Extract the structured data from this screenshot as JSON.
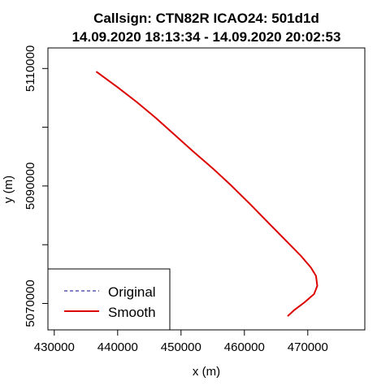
{
  "chart_data": {
    "type": "line",
    "title_line1": "Callsign: CTN82R    ICAO24: 501d1d",
    "title_line2": "14.09.2020 18:13:34 - 14.09.2020 20:02:53",
    "xlabel": "x (m)",
    "ylabel": "y (m)",
    "xlim": [
      429000,
      479000
    ],
    "ylim": [
      5065500,
      5113500
    ],
    "x_ticks": [
      430000,
      440000,
      450000,
      460000,
      470000
    ],
    "x_tick_labels": [
      "430000",
      "440000",
      "450000",
      "460000",
      "470000"
    ],
    "y_ticks": [
      5070000,
      5080000,
      5090000,
      5100000,
      5110000
    ],
    "y_tick_labels_shown": [
      "5070000",
      "",
      "5090000",
      "",
      "5110000"
    ],
    "legend": {
      "placement": "bottom-left",
      "entries": [
        {
          "label": "Original",
          "color": "#00008b",
          "style": "dashed"
        },
        {
          "label": "Smooth",
          "color": "#dd0000",
          "style": "solid"
        }
      ]
    },
    "series": [
      {
        "name": "Original",
        "color": "#00008b",
        "style": "dashed",
        "x": [
          436700,
          440000,
          443000,
          446000,
          449000,
          452000,
          455000,
          458000,
          461000,
          464000,
          467000,
          469000,
          470500,
          471300,
          471500,
          471000,
          469500,
          467800,
          466900
        ],
        "y": [
          5109400,
          5106800,
          5104300,
          5101600,
          5098700,
          5095800,
          5093000,
          5090000,
          5086800,
          5083500,
          5080200,
          5078000,
          5076100,
          5074700,
          5073000,
          5071600,
          5070200,
          5068800,
          5067900
        ]
      },
      {
        "name": "Smooth",
        "color": "#dd0000",
        "style": "solid",
        "x": [
          436700,
          440000,
          443000,
          446000,
          449000,
          452000,
          455000,
          458000,
          461000,
          464000,
          467000,
          469000,
          470500,
          471300,
          471500,
          471000,
          469500,
          467800,
          466900
        ],
        "y": [
          5109400,
          5106800,
          5104300,
          5101600,
          5098700,
          5095800,
          5093000,
          5090000,
          5086800,
          5083500,
          5080200,
          5078000,
          5076100,
          5074700,
          5073000,
          5071600,
          5070200,
          5068800,
          5067900
        ]
      }
    ]
  }
}
